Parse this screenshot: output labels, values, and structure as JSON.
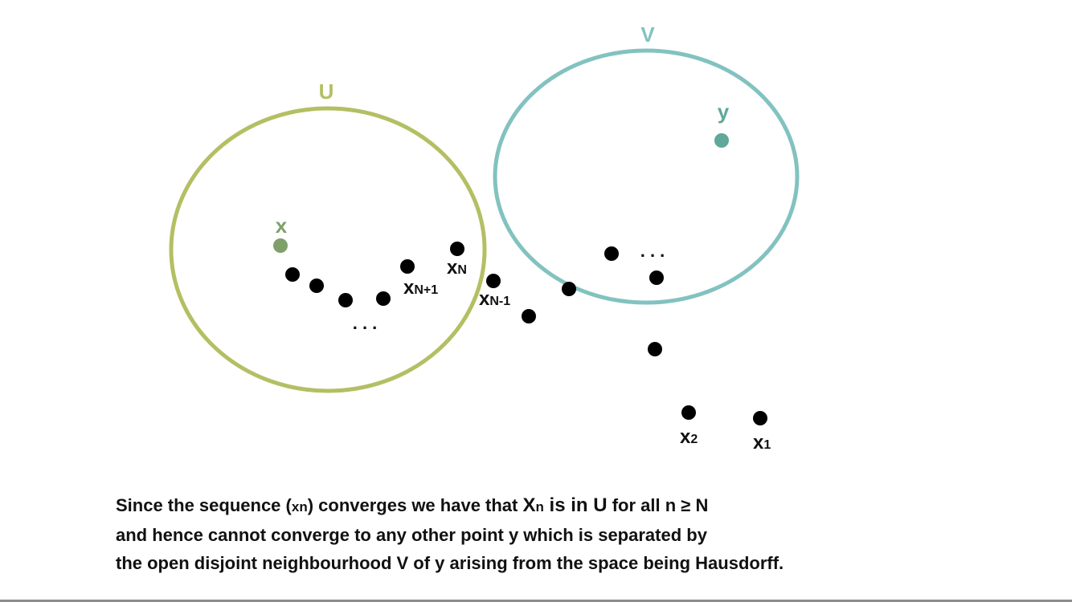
{
  "diagram": {
    "colors": {
      "set_u": "#b4bf63",
      "set_v": "#82c2c0",
      "point_x": "#7fa06a",
      "point_y": "#5fa89a",
      "sequence": "#000000"
    },
    "sets": {
      "u": {
        "label": "U"
      },
      "v": {
        "label": "V"
      }
    },
    "points": {
      "x": {
        "label": "x"
      },
      "y": {
        "label": "y"
      }
    },
    "sequence_labels": {
      "x_n": {
        "base": "x",
        "sub": "N"
      },
      "x_n_plus_1": {
        "base": "x",
        "sub": "N+1"
      },
      "x_n_minus_1": {
        "base": "x",
        "sub": "N-1"
      },
      "x_2": {
        "base": "x",
        "sub": "2"
      },
      "x_1": {
        "base": "x",
        "sub": "1"
      }
    },
    "ellipsis": ". . ."
  },
  "caption": {
    "line1": {
      "a": "Since the sequence (",
      "b": "x",
      "c": "n",
      "d": ") converges we have that ",
      "e": "X",
      "f": "n",
      "g": " is in U",
      "h": " for all n ≥ N"
    },
    "line2": "and hence cannot converge to any other point y which is separated by",
    "line3": "the open disjoint neighbourhood V of y arising from the space being Hausdorff."
  }
}
